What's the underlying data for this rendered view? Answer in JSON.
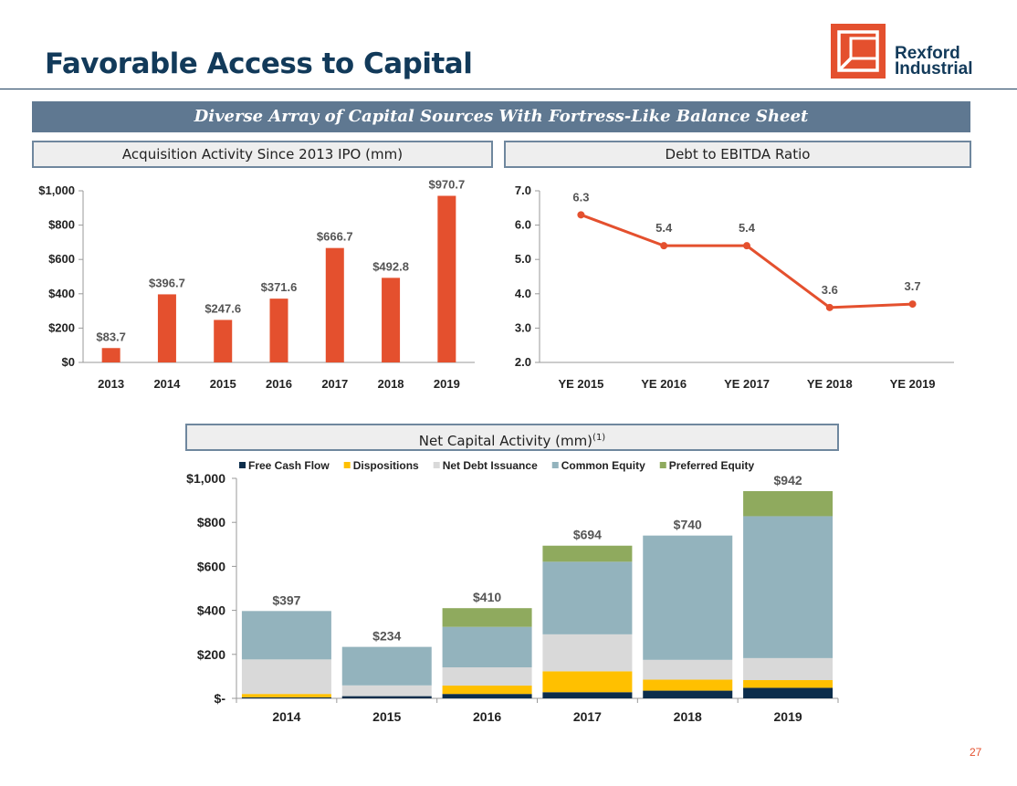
{
  "header": {
    "title": "Favorable Access to Capital",
    "banner": "Diverse Array of Capital Sources With Fortress-Like Balance Sheet",
    "logo_line1": "Rexford",
    "logo_line2": "Industrial"
  },
  "colors": {
    "accent": "#e4502e",
    "navy": "#123a5a",
    "banner": "#5f7891",
    "free_cash_flow": "#0c2d4b",
    "dispositions": "#ffc000",
    "net_debt_issuance": "#d9d9d9",
    "common_equity": "#93b3bd",
    "preferred_equity": "#8faa5e"
  },
  "page_number": "27",
  "chart_data": [
    {
      "type": "bar",
      "title": "Acquisition Activity Since 2013 IPO (mm)",
      "categories": [
        "2013",
        "2014",
        "2015",
        "2016",
        "2017",
        "2018",
        "2019"
      ],
      "values": [
        83.7,
        396.7,
        247.6,
        371.6,
        666.7,
        492.8,
        970.7
      ],
      "data_labels": [
        "$83.7",
        "$396.7",
        "$247.6",
        "$371.6",
        "$666.7",
        "$492.8",
        "$970.7"
      ],
      "ylim": [
        0,
        1000
      ],
      "yticks": [
        0,
        200,
        400,
        600,
        800,
        1000
      ],
      "ytick_labels": [
        "$0",
        "$200",
        "$400",
        "$600",
        "$800",
        "$1,000"
      ],
      "grid": false
    },
    {
      "type": "line",
      "title": "Debt to EBITDA Ratio",
      "categories": [
        "YE 2015",
        "YE 2016",
        "YE 2017",
        "YE 2018",
        "YE 2019"
      ],
      "values": [
        6.3,
        5.4,
        5.4,
        3.6,
        3.7
      ],
      "data_labels": [
        "6.3",
        "5.4",
        "5.4",
        "3.6",
        "3.7"
      ],
      "ylim": [
        2.0,
        7.0
      ],
      "yticks": [
        2.0,
        3.0,
        4.0,
        5.0,
        6.0,
        7.0
      ],
      "ytick_labels": [
        "2.0",
        "3.0",
        "4.0",
        "5.0",
        "6.0",
        "7.0"
      ],
      "grid": false
    },
    {
      "type": "bar",
      "stacked": true,
      "title": "Net Capital Activity (mm)",
      "title_footnote": "(1)",
      "categories": [
        "2014",
        "2015",
        "2016",
        "2017",
        "2018",
        "2019"
      ],
      "series": [
        {
          "name": "Free Cash Flow",
          "values": [
            5,
            10,
            20,
            28,
            35,
            48
          ]
        },
        {
          "name": "Dispositions",
          "values": [
            15,
            0,
            38,
            95,
            50,
            35
          ]
        },
        {
          "name": "Net Debt Issuance",
          "values": [
            157,
            49,
            83,
            168,
            90,
            100
          ]
        },
        {
          "name": "Common Equity",
          "values": [
            220,
            175,
            184,
            330,
            565,
            645
          ]
        },
        {
          "name": "Preferred Equity",
          "values": [
            0,
            0,
            85,
            73,
            0,
            114
          ]
        }
      ],
      "totals": [
        "$397",
        "$234",
        "$410",
        "$694",
        "$740",
        "$942"
      ],
      "ylim": [
        0,
        1000
      ],
      "yticks": [
        0,
        200,
        400,
        600,
        800,
        1000
      ],
      "ytick_labels": [
        "$-",
        "$200",
        "$400",
        "$600",
        "$800",
        "$1,000"
      ],
      "legend_position": "top",
      "grid": false
    }
  ]
}
